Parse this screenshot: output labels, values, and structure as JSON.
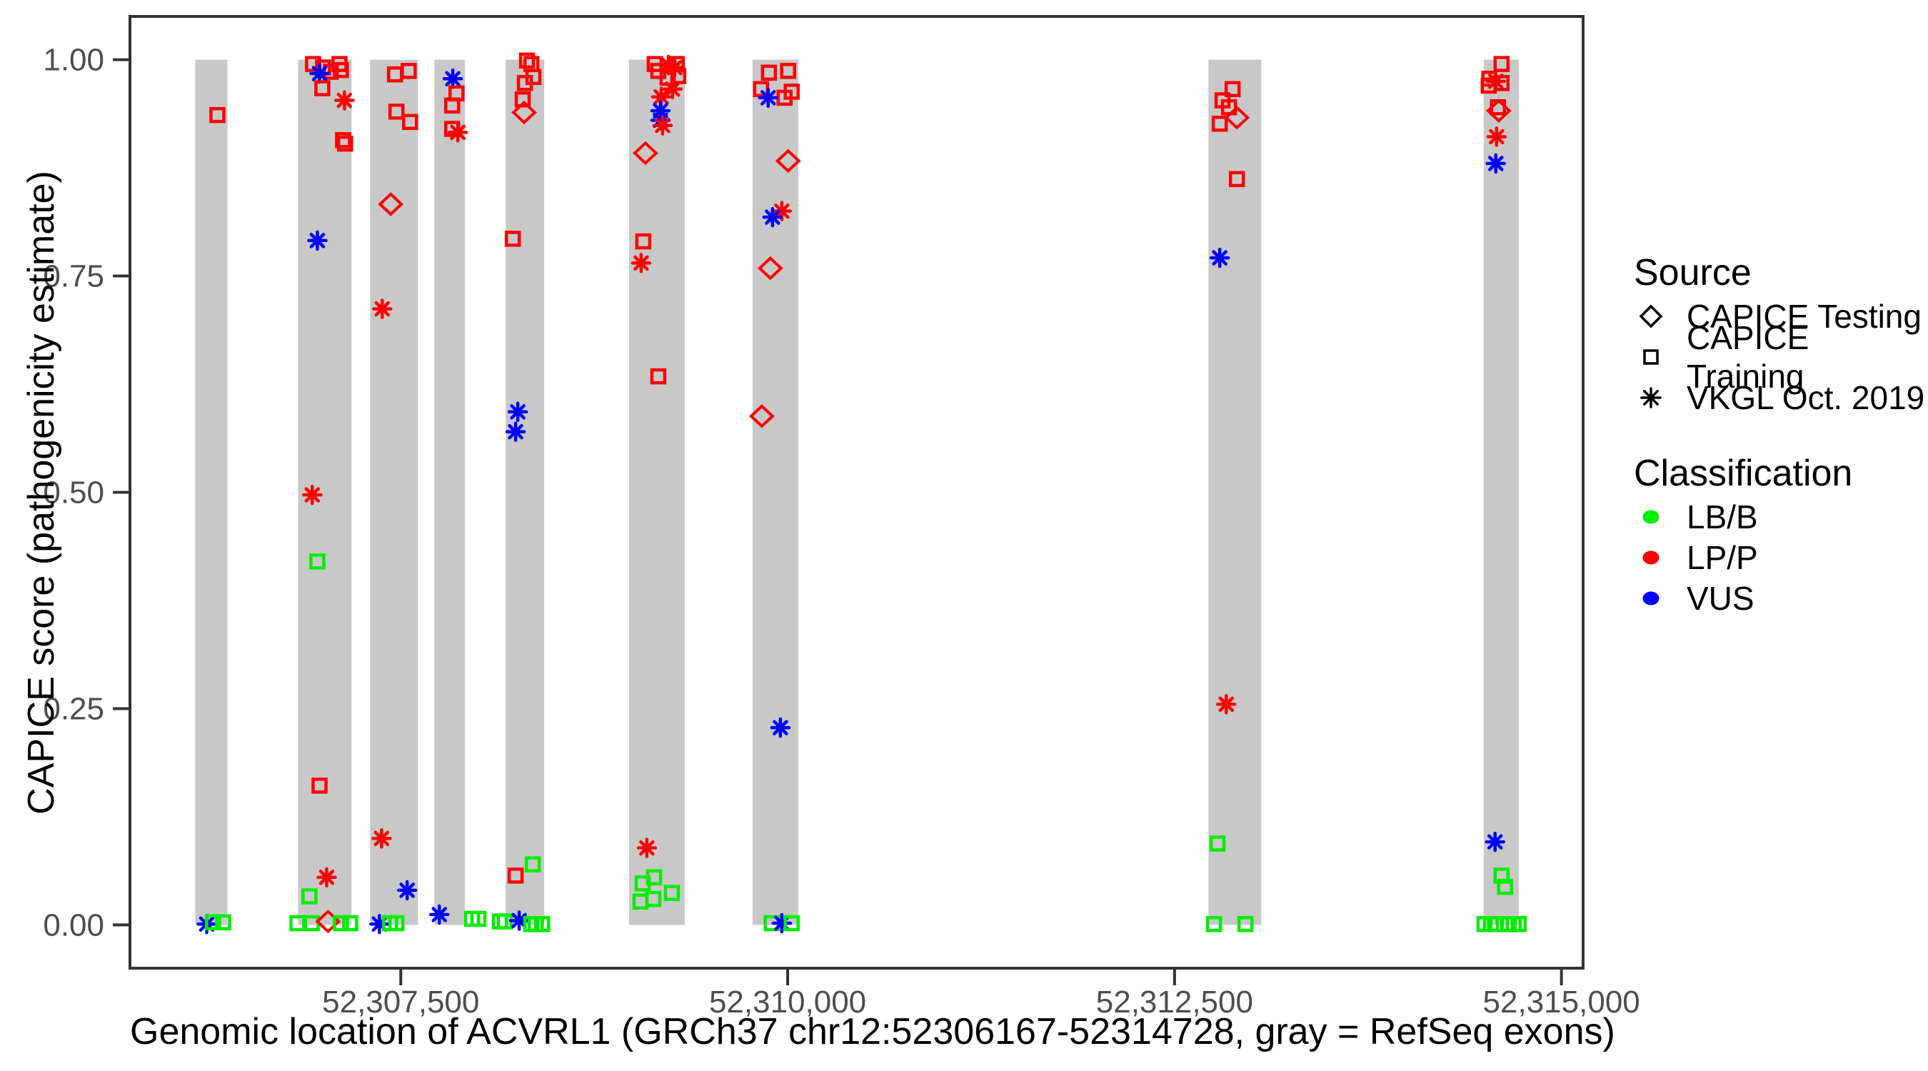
{
  "chart_data": {
    "type": "scatter",
    "xlabel": "Genomic location of ACVRL1 (GRCh37 chr12:52306167-52314728, gray = RefSeq exons)",
    "ylabel": "CAPICE score (pathogenicity estimate)",
    "x_domain": [
      52305750,
      52315140
    ],
    "y_domain": [
      -0.05,
      1.05
    ],
    "x_ticks": [
      {
        "value": 52307500,
        "label": "52,307,500"
      },
      {
        "value": 52310000,
        "label": "52,310,000"
      },
      {
        "value": 52312500,
        "label": "52,312,500"
      },
      {
        "value": 52315000,
        "label": "52,315,000"
      }
    ],
    "y_ticks": [
      {
        "value": 0.0,
        "label": "0.00"
      },
      {
        "value": 0.25,
        "label": "0.25"
      },
      {
        "value": 0.5,
        "label": "0.50"
      },
      {
        "value": 0.75,
        "label": "0.75"
      },
      {
        "value": 1.0,
        "label": "1.00"
      }
    ],
    "grid": false,
    "exon_color": "#c8c8c8",
    "panel_border_color": "#333333",
    "tick_color": "#333333",
    "tick_text_color": "#4d4d4d",
    "classification_colors": {
      "LB/B": "#00ee00",
      "LP/P": "#ff0000",
      "VUS": "#0000ff"
    },
    "source_shapes": {
      "CAPICE Testing": "diamond",
      "CAPICE Training": "square",
      "VKGL Oct. 2019": "asterisk"
    },
    "exons": [
      [
        52306172,
        52306380
      ],
      [
        52306836,
        52307182
      ],
      [
        52307302,
        52307611
      ],
      [
        52307717,
        52307915
      ],
      [
        52308178,
        52308427
      ],
      [
        52308975,
        52309335
      ],
      [
        52309773,
        52310068
      ],
      [
        52312719,
        52313060
      ],
      [
        52314498,
        52314724
      ]
    ],
    "points": [
      {
        "x": 52306315,
        "y": 0.936,
        "shape": "square",
        "cls": "LP/P"
      },
      {
        "x": 52306246,
        "y": 0.001,
        "shape": "asterisk",
        "cls": "VUS"
      },
      {
        "x": 52306287,
        "y": 0.003,
        "shape": "square",
        "cls": "LB/B"
      },
      {
        "x": 52306352,
        "y": 0.003,
        "shape": "square",
        "cls": "LB/B"
      },
      {
        "x": 52306933,
        "y": 0.995,
        "shape": "square",
        "cls": "LP/P"
      },
      {
        "x": 52306998,
        "y": 0.991,
        "shape": "square",
        "cls": "LP/P"
      },
      {
        "x": 52307104,
        "y": 0.995,
        "shape": "square",
        "cls": "LP/P"
      },
      {
        "x": 52307113,
        "y": 0.988,
        "shape": "square",
        "cls": "LP/P"
      },
      {
        "x": 52307048,
        "y": 0.986,
        "shape": "square",
        "cls": "LP/P"
      },
      {
        "x": 52306975,
        "y": 0.984,
        "shape": "asterisk",
        "cls": "VUS"
      },
      {
        "x": 52306993,
        "y": 0.967,
        "shape": "square",
        "cls": "LP/P"
      },
      {
        "x": 52307136,
        "y": 0.953,
        "shape": "asterisk",
        "cls": "LP/P"
      },
      {
        "x": 52307127,
        "y": 0.907,
        "shape": "square",
        "cls": "LP/P"
      },
      {
        "x": 52307140,
        "y": 0.903,
        "shape": "square",
        "cls": "LP/P"
      },
      {
        "x": 52306961,
        "y": 0.791,
        "shape": "asterisk",
        "cls": "VUS"
      },
      {
        "x": 52306928,
        "y": 0.497,
        "shape": "asterisk",
        "cls": "LP/P"
      },
      {
        "x": 52306961,
        "y": 0.42,
        "shape": "square",
        "cls": "LB/B"
      },
      {
        "x": 52306975,
        "y": 0.161,
        "shape": "square",
        "cls": "LP/P"
      },
      {
        "x": 52307021,
        "y": 0.055,
        "shape": "asterisk",
        "cls": "LP/P"
      },
      {
        "x": 52306910,
        "y": 0.033,
        "shape": "square",
        "cls": "LB/B"
      },
      {
        "x": 52306832,
        "y": 0.002,
        "shape": "square",
        "cls": "LB/B"
      },
      {
        "x": 52306925,
        "y": 0.002,
        "shape": "square",
        "cls": "LB/B"
      },
      {
        "x": 52307030,
        "y": 0.004,
        "shape": "diamond",
        "cls": "LP/P"
      },
      {
        "x": 52307113,
        "y": 0.002,
        "shape": "square",
        "cls": "LB/B"
      },
      {
        "x": 52307173,
        "y": 0.002,
        "shape": "square",
        "cls": "LB/B"
      },
      {
        "x": 52307463,
        "y": 0.983,
        "shape": "square",
        "cls": "LP/P"
      },
      {
        "x": 52307551,
        "y": 0.987,
        "shape": "square",
        "cls": "LP/P"
      },
      {
        "x": 52307472,
        "y": 0.94,
        "shape": "square",
        "cls": "LP/P"
      },
      {
        "x": 52307560,
        "y": 0.928,
        "shape": "square",
        "cls": "LP/P"
      },
      {
        "x": 52307435,
        "y": 0.833,
        "shape": "diamond",
        "cls": "LP/P"
      },
      {
        "x": 52307380,
        "y": 0.712,
        "shape": "asterisk",
        "cls": "LP/P"
      },
      {
        "x": 52307376,
        "y": 0.1,
        "shape": "asterisk",
        "cls": "LP/P"
      },
      {
        "x": 52307541,
        "y": 0.04,
        "shape": "asterisk",
        "cls": "VUS"
      },
      {
        "x": 52307362,
        "y": 0.001,
        "shape": "asterisk",
        "cls": "VUS"
      },
      {
        "x": 52307431,
        "y": 0.002,
        "shape": "square",
        "cls": "LB/B"
      },
      {
        "x": 52307472,
        "y": 0.002,
        "shape": "square",
        "cls": "LB/B"
      },
      {
        "x": 52307836,
        "y": 0.978,
        "shape": "asterisk",
        "cls": "VUS"
      },
      {
        "x": 52307860,
        "y": 0.961,
        "shape": "square",
        "cls": "LP/P"
      },
      {
        "x": 52307832,
        "y": 0.947,
        "shape": "square",
        "cls": "LP/P"
      },
      {
        "x": 52307832,
        "y": 0.92,
        "shape": "square",
        "cls": "LP/P"
      },
      {
        "x": 52307869,
        "y": 0.916,
        "shape": "asterisk",
        "cls": "LP/P"
      },
      {
        "x": 52307749,
        "y": 0.012,
        "shape": "asterisk",
        "cls": "VUS"
      },
      {
        "x": 52307961,
        "y": 0.007,
        "shape": "square",
        "cls": "LB/B"
      },
      {
        "x": 52308002,
        "y": 0.007,
        "shape": "square",
        "cls": "LB/B"
      },
      {
        "x": 52308141,
        "y": 0.004,
        "shape": "square",
        "cls": "LB/B"
      },
      {
        "x": 52308173,
        "y": 0.004,
        "shape": "square",
        "cls": "LB/B"
      },
      {
        "x": 52308316,
        "y": 0.999,
        "shape": "square",
        "cls": "LP/P"
      },
      {
        "x": 52308344,
        "y": 0.995,
        "shape": "square",
        "cls": "LP/P"
      },
      {
        "x": 52308357,
        "y": 0.98,
        "shape": "square",
        "cls": "LP/P"
      },
      {
        "x": 52308302,
        "y": 0.973,
        "shape": "square",
        "cls": "LP/P"
      },
      {
        "x": 52308288,
        "y": 0.954,
        "shape": "square",
        "cls": "LP/P"
      },
      {
        "x": 52308297,
        "y": 0.939,
        "shape": "diamond",
        "cls": "LP/P"
      },
      {
        "x": 52308224,
        "y": 0.793,
        "shape": "square",
        "cls": "LP/P"
      },
      {
        "x": 52308256,
        "y": 0.593,
        "shape": "asterisk",
        "cls": "VUS"
      },
      {
        "x": 52308242,
        "y": 0.57,
        "shape": "asterisk",
        "cls": "VUS"
      },
      {
        "x": 52308242,
        "y": 0.057,
        "shape": "square",
        "cls": "LP/P"
      },
      {
        "x": 52308353,
        "y": 0.07,
        "shape": "square",
        "cls": "LB/B"
      },
      {
        "x": 52308265,
        "y": 0.005,
        "shape": "asterisk",
        "cls": "VUS"
      },
      {
        "x": 52308344,
        "y": 0.001,
        "shape": "square",
        "cls": "LB/B"
      },
      {
        "x": 52308372,
        "y": 0.001,
        "shape": "square",
        "cls": "LB/B"
      },
      {
        "x": 52308413,
        "y": 0.001,
        "shape": "square",
        "cls": "LB/B"
      },
      {
        "x": 52309141,
        "y": 0.995,
        "shape": "square",
        "cls": "LP/P"
      },
      {
        "x": 52309284,
        "y": 0.995,
        "shape": "square",
        "cls": "LP/P"
      },
      {
        "x": 52309229,
        "y": 0.994,
        "shape": "asterisk",
        "cls": "LP/P"
      },
      {
        "x": 52309270,
        "y": 0.991,
        "shape": "asterisk",
        "cls": "LP/P"
      },
      {
        "x": 52309164,
        "y": 0.987,
        "shape": "square",
        "cls": "LP/P"
      },
      {
        "x": 52309293,
        "y": 0.981,
        "shape": "square",
        "cls": "LP/P"
      },
      {
        "x": 52309224,
        "y": 0.979,
        "shape": "square",
        "cls": "LP/P"
      },
      {
        "x": 52309256,
        "y": 0.966,
        "shape": "asterisk",
        "cls": "LP/P"
      },
      {
        "x": 52309183,
        "y": 0.957,
        "shape": "asterisk",
        "cls": "LP/P"
      },
      {
        "x": 52309178,
        "y": 0.941,
        "shape": "asterisk",
        "cls": "VUS"
      },
      {
        "x": 52309178,
        "y": 0.93,
        "shape": "asterisk",
        "cls": "VUS"
      },
      {
        "x": 52309192,
        "y": 0.924,
        "shape": "asterisk",
        "cls": "LP/P"
      },
      {
        "x": 52309081,
        "y": 0.892,
        "shape": "diamond",
        "cls": "LP/P"
      },
      {
        "x": 52309067,
        "y": 0.79,
        "shape": "square",
        "cls": "LP/P"
      },
      {
        "x": 52309053,
        "y": 0.765,
        "shape": "asterisk",
        "cls": "LP/P"
      },
      {
        "x": 52309164,
        "y": 0.634,
        "shape": "square",
        "cls": "LP/P"
      },
      {
        "x": 52309090,
        "y": 0.089,
        "shape": "asterisk",
        "cls": "LP/P"
      },
      {
        "x": 52309137,
        "y": 0.055,
        "shape": "square",
        "cls": "LB/B"
      },
      {
        "x": 52309063,
        "y": 0.048,
        "shape": "square",
        "cls": "LB/B"
      },
      {
        "x": 52309252,
        "y": 0.037,
        "shape": "square",
        "cls": "LB/B"
      },
      {
        "x": 52309132,
        "y": 0.03,
        "shape": "square",
        "cls": "LB/B"
      },
      {
        "x": 52309049,
        "y": 0.027,
        "shape": "square",
        "cls": "LB/B"
      },
      {
        "x": 52309879,
        "y": 0.985,
        "shape": "square",
        "cls": "LP/P"
      },
      {
        "x": 52310003,
        "y": 0.987,
        "shape": "square",
        "cls": "LP/P"
      },
      {
        "x": 52310026,
        "y": 0.963,
        "shape": "square",
        "cls": "LP/P"
      },
      {
        "x": 52309828,
        "y": 0.966,
        "shape": "square",
        "cls": "LP/P"
      },
      {
        "x": 52309980,
        "y": 0.956,
        "shape": "square",
        "cls": "LP/P"
      },
      {
        "x": 52309874,
        "y": 0.956,
        "shape": "asterisk",
        "cls": "VUS"
      },
      {
        "x": 52310003,
        "y": 0.883,
        "shape": "diamond",
        "cls": "LP/P"
      },
      {
        "x": 52309962,
        "y": 0.825,
        "shape": "asterisk",
        "cls": "LP/P"
      },
      {
        "x": 52309902,
        "y": 0.818,
        "shape": "asterisk",
        "cls": "VUS"
      },
      {
        "x": 52309888,
        "y": 0.759,
        "shape": "diamond",
        "cls": "LP/P"
      },
      {
        "x": 52309833,
        "y": 0.588,
        "shape": "diamond",
        "cls": "LP/P"
      },
      {
        "x": 52309953,
        "y": 0.228,
        "shape": "asterisk",
        "cls": "VUS"
      },
      {
        "x": 52309897,
        "y": 0.002,
        "shape": "square",
        "cls": "LB/B"
      },
      {
        "x": 52309962,
        "y": 0.002,
        "shape": "asterisk",
        "cls": "VUS"
      },
      {
        "x": 52310026,
        "y": 0.002,
        "shape": "square",
        "cls": "LB/B"
      },
      {
        "x": 52312875,
        "y": 0.966,
        "shape": "square",
        "cls": "LP/P"
      },
      {
        "x": 52312810,
        "y": 0.953,
        "shape": "square",
        "cls": "LP/P"
      },
      {
        "x": 52312852,
        "y": 0.945,
        "shape": "square",
        "cls": "LP/P"
      },
      {
        "x": 52312903,
        "y": 0.933,
        "shape": "diamond",
        "cls": "LP/P"
      },
      {
        "x": 52312792,
        "y": 0.926,
        "shape": "square",
        "cls": "LP/P"
      },
      {
        "x": 52312903,
        "y": 0.862,
        "shape": "square",
        "cls": "LP/P"
      },
      {
        "x": 52312792,
        "y": 0.771,
        "shape": "asterisk",
        "cls": "VUS"
      },
      {
        "x": 52312834,
        "y": 0.255,
        "shape": "asterisk",
        "cls": "LP/P"
      },
      {
        "x": 52312778,
        "y": 0.094,
        "shape": "square",
        "cls": "LB/B"
      },
      {
        "x": 52312755,
        "y": 0.001,
        "shape": "square",
        "cls": "LB/B"
      },
      {
        "x": 52312958,
        "y": 0.001,
        "shape": "square",
        "cls": "LB/B"
      },
      {
        "x": 52314613,
        "y": 0.995,
        "shape": "square",
        "cls": "LP/P"
      },
      {
        "x": 52314534,
        "y": 0.978,
        "shape": "square",
        "cls": "LP/P"
      },
      {
        "x": 52314576,
        "y": 0.975,
        "shape": "asterisk",
        "cls": "LP/P"
      },
      {
        "x": 52314613,
        "y": 0.973,
        "shape": "square",
        "cls": "LP/P"
      },
      {
        "x": 52314530,
        "y": 0.97,
        "shape": "square",
        "cls": "LP/P"
      },
      {
        "x": 52314590,
        "y": 0.945,
        "shape": "square",
        "cls": "LP/P"
      },
      {
        "x": 52314595,
        "y": 0.941,
        "shape": "diamond",
        "cls": "LP/P"
      },
      {
        "x": 52314581,
        "y": 0.911,
        "shape": "asterisk",
        "cls": "LP/P"
      },
      {
        "x": 52314576,
        "y": 0.88,
        "shape": "asterisk",
        "cls": "VUS"
      },
      {
        "x": 52314571,
        "y": 0.096,
        "shape": "asterisk",
        "cls": "VUS"
      },
      {
        "x": 52314613,
        "y": 0.057,
        "shape": "square",
        "cls": "LB/B"
      },
      {
        "x": 52314636,
        "y": 0.044,
        "shape": "square",
        "cls": "LB/B"
      },
      {
        "x": 52314503,
        "y": 0.001,
        "shape": "square",
        "cls": "LB/B"
      },
      {
        "x": 52314544,
        "y": 0.001,
        "shape": "square",
        "cls": "LB/B"
      },
      {
        "x": 52314571,
        "y": 0.001,
        "shape": "square",
        "cls": "LB/B"
      },
      {
        "x": 52314659,
        "y": 0.001,
        "shape": "square",
        "cls": "LB/B"
      },
      {
        "x": 52314692,
        "y": 0.001,
        "shape": "square",
        "cls": "LB/B"
      },
      {
        "x": 52314724,
        "y": 0.001,
        "shape": "square",
        "cls": "LB/B"
      }
    ]
  },
  "legend": {
    "source": {
      "title": "Source",
      "items": [
        {
          "label": "CAPICE Testing",
          "shape": "diamond"
        },
        {
          "label": "CAPICE Training",
          "shape": "square"
        },
        {
          "label": "VKGL Oct. 2019",
          "shape": "asterisk"
        }
      ]
    },
    "classification": {
      "title": "Classification",
      "items": [
        {
          "label": "LB/B",
          "color": "#00ee00"
        },
        {
          "label": "LP/P",
          "color": "#ff0000"
        },
        {
          "label": "VUS",
          "color": "#0000ff"
        }
      ]
    }
  }
}
